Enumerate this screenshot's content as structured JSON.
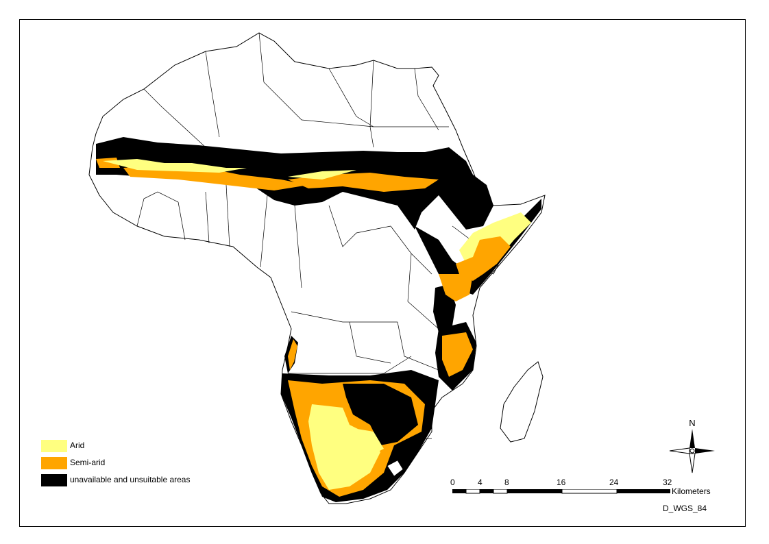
{
  "colors": {
    "arid": "#ffff80",
    "semi_arid": "#ffa500",
    "unavailable": "#000000",
    "land": "#ffffff",
    "border": "#000000"
  },
  "legend": [
    {
      "label": "Arid",
      "color": "#ffff80"
    },
    {
      "label": "Semi-arid",
      "color": "#ffa500"
    },
    {
      "label": "unavailable and unsuitable areas",
      "color": "#000000"
    }
  ],
  "scale_bar": {
    "ticks": [
      "0",
      "4",
      "8",
      "16",
      "24",
      "32"
    ],
    "unit": "Kilometers"
  },
  "north_arrow": {
    "label": "N"
  },
  "datum": "D_WGS_84"
}
